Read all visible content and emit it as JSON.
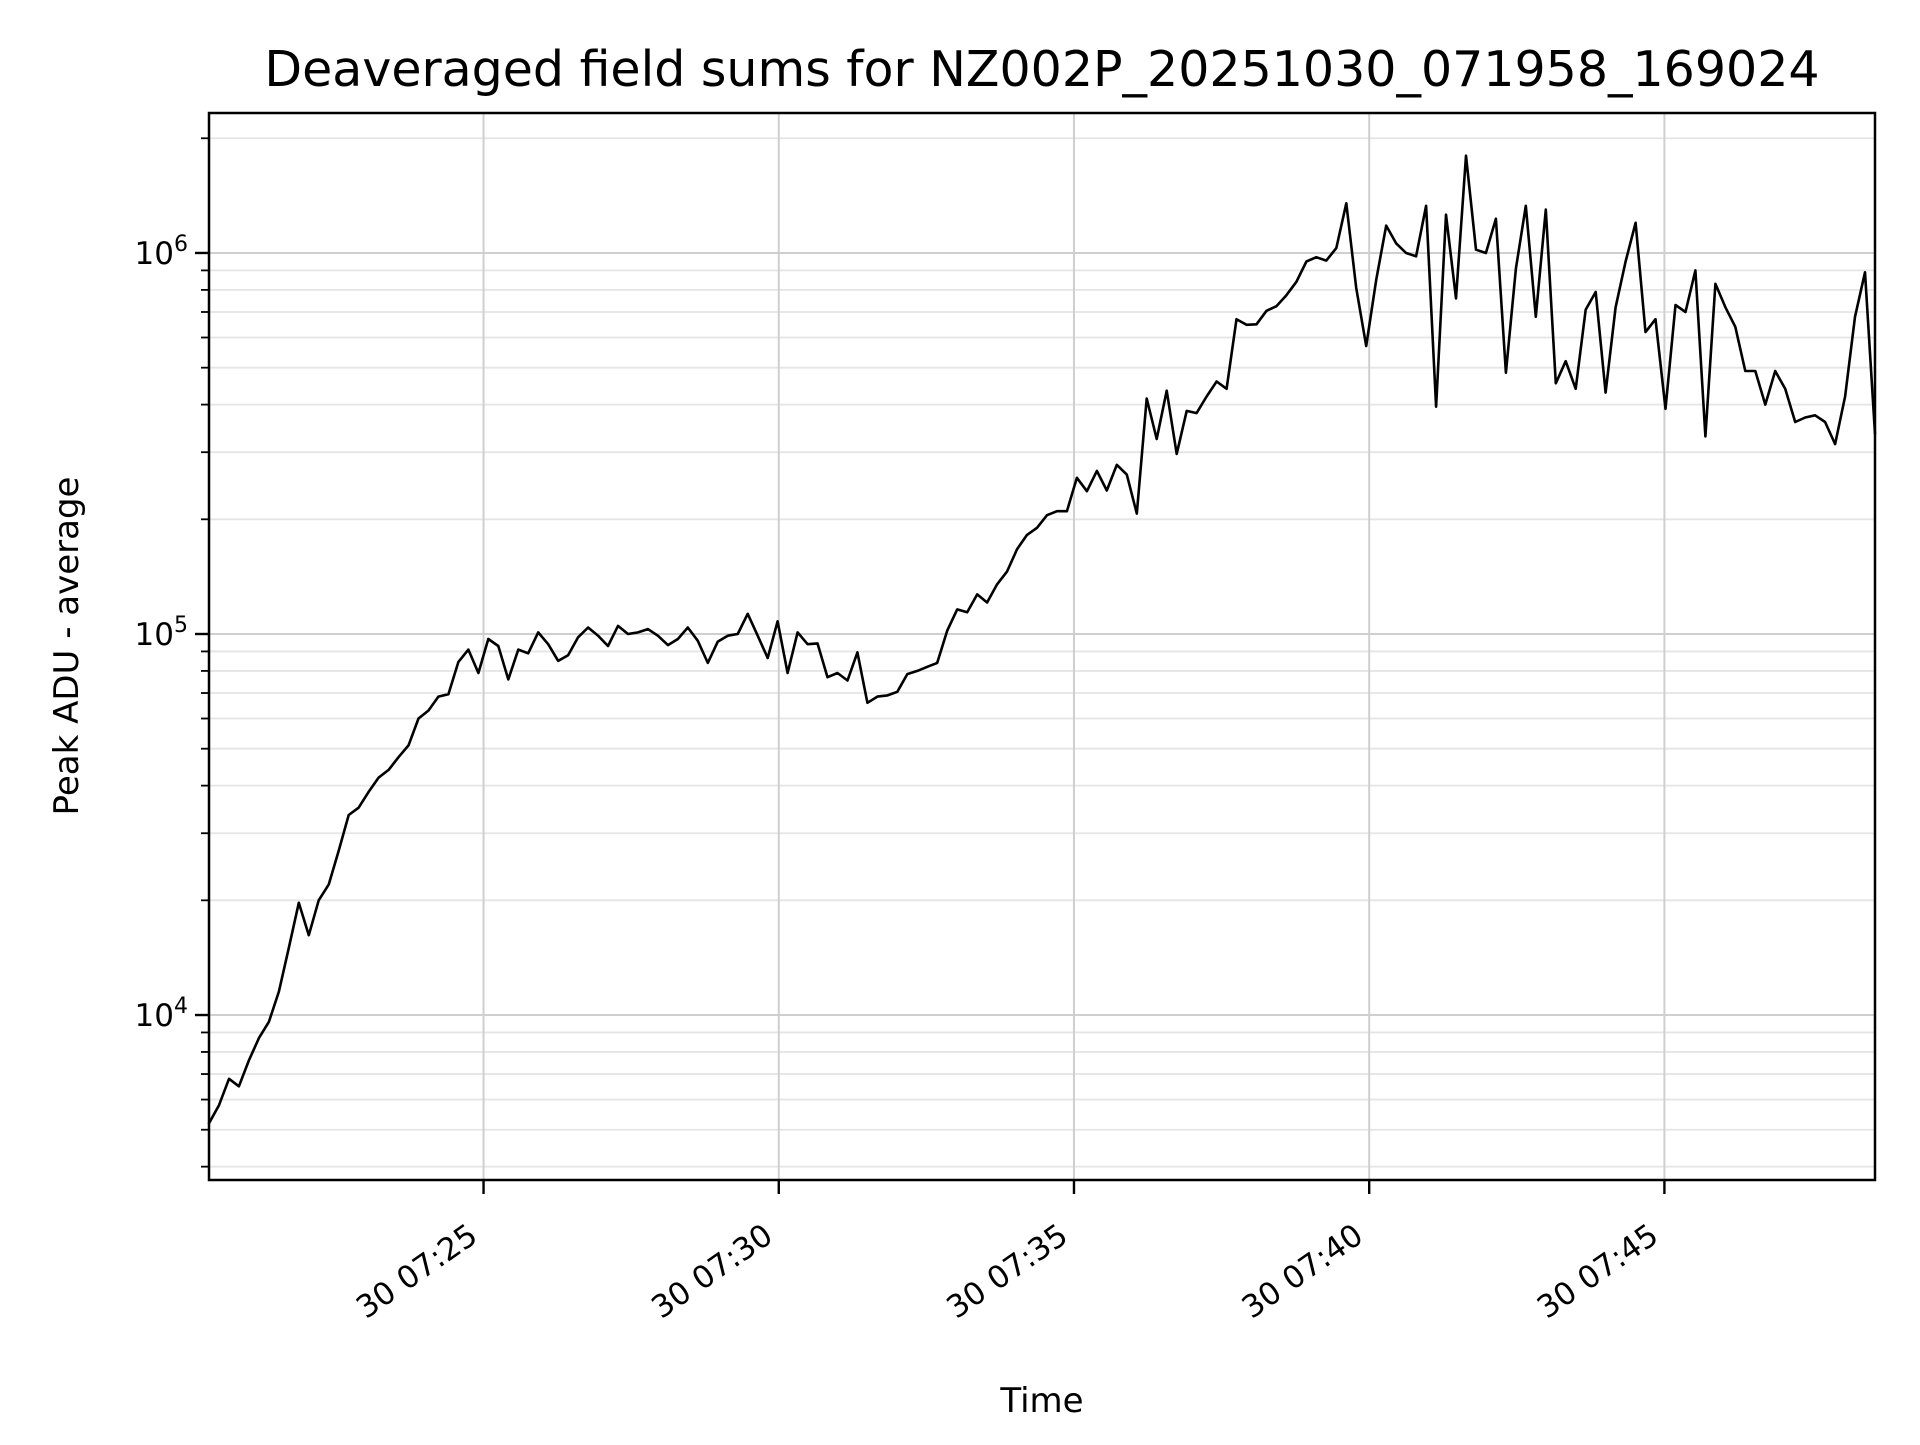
{
  "chart_data": {
    "type": "line",
    "title": "Deaveraged field sums for NZ002P_20251030_071958_169024",
    "xlabel": "Time",
    "ylabel": "Peak ADU - average",
    "y_scale": "log",
    "grid": "both",
    "legend": "none",
    "background_color": "#ffffff",
    "line_color": "#000000",
    "major_grid_color": "#cfcfcf",
    "minor_grid_color": "#e5e5e5",
    "axis_color": "#000000",
    "xlim_time": [
      "07:20:21",
      "07:48:34"
    ],
    "ylim": [
      3690,
      2330000
    ],
    "x_tick_origin_time": "07:20:00",
    "x_ticks": [
      {
        "label": "30 07:25",
        "time": "07:25:00"
      },
      {
        "label": "30 07:30",
        "time": "07:30:00"
      },
      {
        "label": "30 07:35",
        "time": "07:35:00"
      },
      {
        "label": "30 07:40",
        "time": "07:40:00"
      },
      {
        "label": "30 07:45",
        "time": "07:45:00"
      }
    ],
    "y_ticks": [
      {
        "base": "10",
        "exp": "4",
        "value": 10000
      },
      {
        "base": "10",
        "exp": "5",
        "value": 100000
      },
      {
        "base": "10",
        "exp": "6",
        "value": 1000000
      }
    ],
    "series": {
      "name": "Peak ADU - average",
      "start_time": "07:20:21",
      "sample_interval_s": 10.1377,
      "values": [
        5200,
        5800,
        6800,
        6500,
        7600,
        8700,
        9600,
        11500,
        15000,
        19700,
        16200,
        20000,
        22000,
        27000,
        33500,
        35000,
        38500,
        42000,
        44000,
        47500,
        51000,
        60000,
        63000,
        68500,
        69500,
        84500,
        91000,
        79000,
        97000,
        93000,
        76000,
        91000,
        89000,
        101000,
        94000,
        85000,
        88000,
        98000,
        104000,
        99000,
        93000,
        105000,
        100000,
        101000,
        103000,
        99000,
        93500,
        97000,
        104000,
        96000,
        84000,
        95500,
        99000,
        100000,
        113000,
        99000,
        86500,
        108000,
        79000,
        101000,
        94000,
        94500,
        77000,
        79000,
        75500,
        89500,
        66000,
        68500,
        69000,
        70500,
        78500,
        80000,
        82000,
        84000,
        102000,
        116000,
        114000,
        127000,
        121000,
        135000,
        146000,
        167000,
        182000,
        190000,
        205000,
        210000,
        210000,
        257000,
        237000,
        268000,
        238000,
        278000,
        262000,
        207000,
        415000,
        325000,
        435000,
        297000,
        385000,
        380000,
        420000,
        460000,
        440000,
        670000,
        648000,
        650000,
        705000,
        725000,
        775000,
        840000,
        950000,
        975000,
        955000,
        1030000,
        1350000,
        810000,
        570000,
        850000,
        1180000,
        1060000,
        1000000,
        980000,
        1330000,
        395000,
        1260000,
        760000,
        1800000,
        1020000,
        1000000,
        1230000,
        485000,
        910000,
        1330000,
        680000,
        1300000,
        455000,
        520000,
        440000,
        710000,
        790000,
        430000,
        720000,
        950000,
        1200000,
        620000,
        670000,
        390000,
        730000,
        700000,
        900000,
        330000,
        830000,
        720000,
        640000,
        490000,
        490000,
        400000,
        490000,
        440000,
        360000,
        370000,
        375000,
        360000,
        315000,
        420000,
        680000,
        890000,
        335000
      ]
    }
  }
}
